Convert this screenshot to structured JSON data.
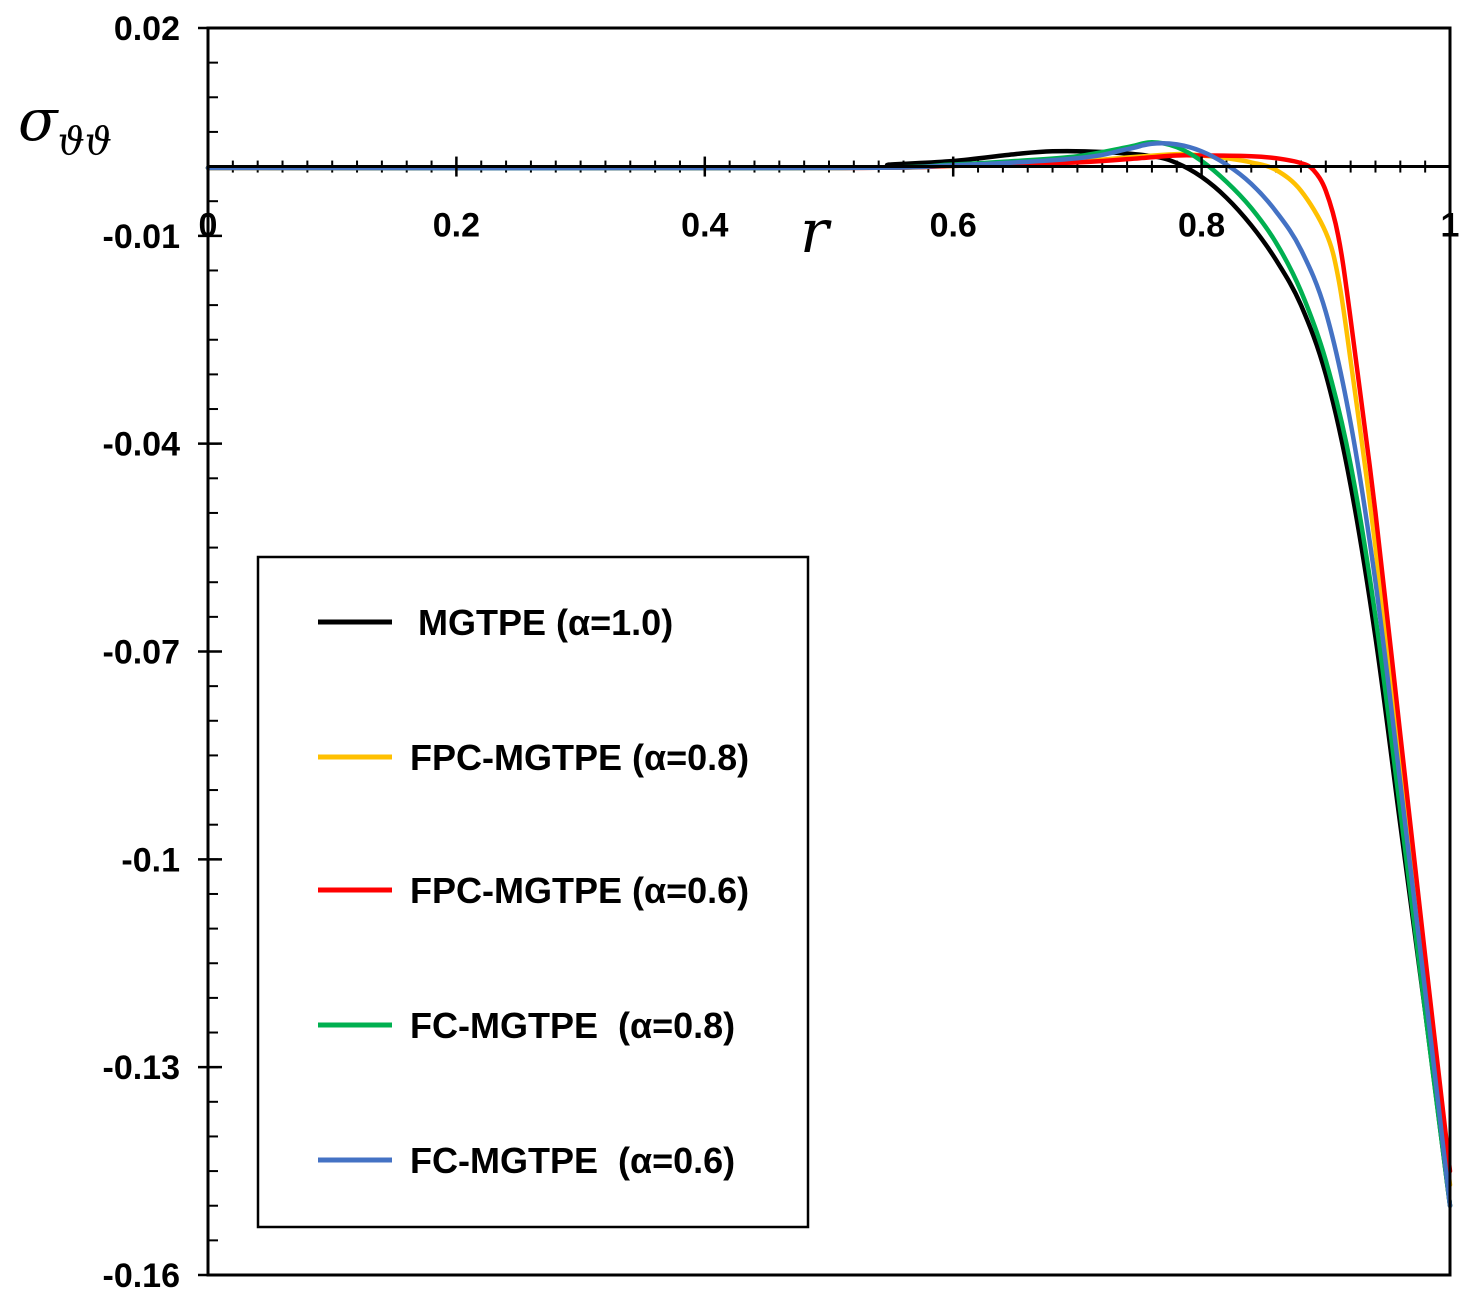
{
  "chart_data": {
    "type": "line",
    "title": "",
    "xlabel": "r",
    "ylabel": "σϑϑ",
    "xlim": [
      0,
      1
    ],
    "ylim": [
      -0.16,
      0.02
    ],
    "x_axis_at_y": 0,
    "x_ticks": [
      0,
      0.2,
      0.4,
      0.6,
      0.8,
      1
    ],
    "x_tick_labels": [
      "0",
      "0.2",
      "0.4",
      "0.6",
      "0.8",
      "1"
    ],
    "y_ticks": [
      0.02,
      -0.01,
      -0.04,
      -0.07,
      -0.1,
      -0.13,
      -0.16
    ],
    "y_tick_labels": [
      "0.02",
      "-0.01",
      "-0.04",
      "-0.07",
      "-0.1",
      "-0.13",
      "-0.16"
    ],
    "grid": false,
    "legend_position": "lower-left",
    "series": [
      {
        "name": "MGTPE (α=1.0)",
        "color": "#000000",
        "x": [
          0,
          0.5,
          0.55,
          0.6,
          0.65,
          0.68,
          0.72,
          0.76,
          0.78,
          0.8,
          0.82,
          0.84,
          0.86,
          0.88,
          0.9,
          0.92,
          0.94,
          0.96,
          0.98,
          1.0
        ],
        "y": [
          -0.0002,
          -0.0002,
          0.0003,
          0.0008,
          0.0018,
          0.0022,
          0.0021,
          0.0015,
          0.0005,
          -0.0015,
          -0.0045,
          -0.0085,
          -0.0135,
          -0.02,
          -0.03,
          -0.046,
          -0.068,
          -0.095,
          -0.122,
          -0.15
        ]
      },
      {
        "name": "FPC-MGTPE (α=0.8)",
        "color": "#FFC000",
        "x": [
          0,
          0.5,
          0.6,
          0.7,
          0.74,
          0.78,
          0.8,
          0.82,
          0.84,
          0.86,
          0.88,
          0.9,
          0.91,
          0.92,
          0.94,
          0.96,
          0.98,
          1.0
        ],
        "y": [
          -0.0002,
          -0.0002,
          0.0001,
          0.0008,
          0.0013,
          0.0018,
          0.0016,
          0.0012,
          0.0006,
          -0.0005,
          -0.0035,
          -0.0095,
          -0.016,
          -0.028,
          -0.055,
          -0.087,
          -0.118,
          -0.147
        ]
      },
      {
        "name": "FPC-MGTPE (α=0.6)",
        "color": "#FF0000",
        "x": [
          0,
          0.5,
          0.6,
          0.7,
          0.75,
          0.78,
          0.8,
          0.84,
          0.86,
          0.88,
          0.89,
          0.9,
          0.91,
          0.92,
          0.94,
          0.96,
          0.98,
          1.0
        ],
        "y": [
          -0.0002,
          -0.0002,
          0.0001,
          0.0006,
          0.0012,
          0.0016,
          0.0016,
          0.0015,
          0.0012,
          0.0005,
          -0.0005,
          -0.0035,
          -0.01,
          -0.022,
          -0.05,
          -0.082,
          -0.114,
          -0.145
        ]
      },
      {
        "name": "FC-MGTPE  (α=0.8)",
        "color": "#00B050",
        "x": [
          0,
          0.5,
          0.6,
          0.65,
          0.7,
          0.74,
          0.76,
          0.78,
          0.8,
          0.82,
          0.84,
          0.86,
          0.88,
          0.9,
          0.92,
          0.94,
          0.96,
          0.98,
          1.0
        ],
        "y": [
          -0.0002,
          -0.0002,
          0.0003,
          0.0008,
          0.0015,
          0.0028,
          0.0035,
          0.0028,
          0.0008,
          -0.0022,
          -0.006,
          -0.011,
          -0.018,
          -0.028,
          -0.043,
          -0.065,
          -0.093,
          -0.122,
          -0.15
        ]
      },
      {
        "name": "FC-MGTPE  (α=0.6)",
        "color": "#4472C4",
        "x": [
          0,
          0.5,
          0.6,
          0.7,
          0.74,
          0.76,
          0.78,
          0.8,
          0.82,
          0.84,
          0.86,
          0.88,
          0.9,
          0.92,
          0.94,
          0.96,
          0.98,
          1.0
        ],
        "y": [
          -0.0002,
          -0.0002,
          0.0002,
          0.0012,
          0.0025,
          0.0033,
          0.0032,
          0.0022,
          0.0003,
          -0.0025,
          -0.0065,
          -0.012,
          -0.021,
          -0.037,
          -0.06,
          -0.089,
          -0.119,
          -0.15
        ]
      }
    ]
  }
}
